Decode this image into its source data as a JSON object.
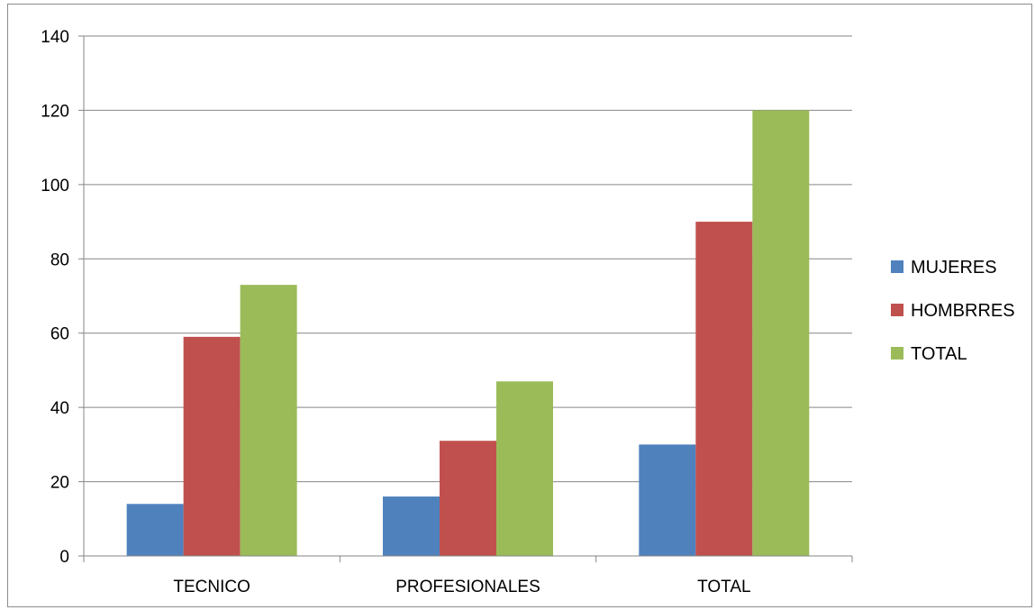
{
  "chart_data": {
    "type": "bar",
    "categories": [
      "TECNICO",
      "PROFESIONALES",
      "TOTAL"
    ],
    "series": [
      {
        "name": "MUJERES",
        "color": "#4f81bd",
        "values": [
          14,
          16,
          30
        ]
      },
      {
        "name": "HOMBRRES",
        "color": "#c0504d",
        "values": [
          59,
          31,
          90
        ]
      },
      {
        "name": "TOTAL",
        "color": "#9bbb59",
        "values": [
          73,
          47,
          120
        ]
      }
    ],
    "yticks": [
      "0",
      "20",
      "40",
      "60",
      "80",
      "100",
      "120",
      "140"
    ],
    "ylim": [
      0,
      140
    ],
    "grid": true,
    "legend_position": "right"
  }
}
